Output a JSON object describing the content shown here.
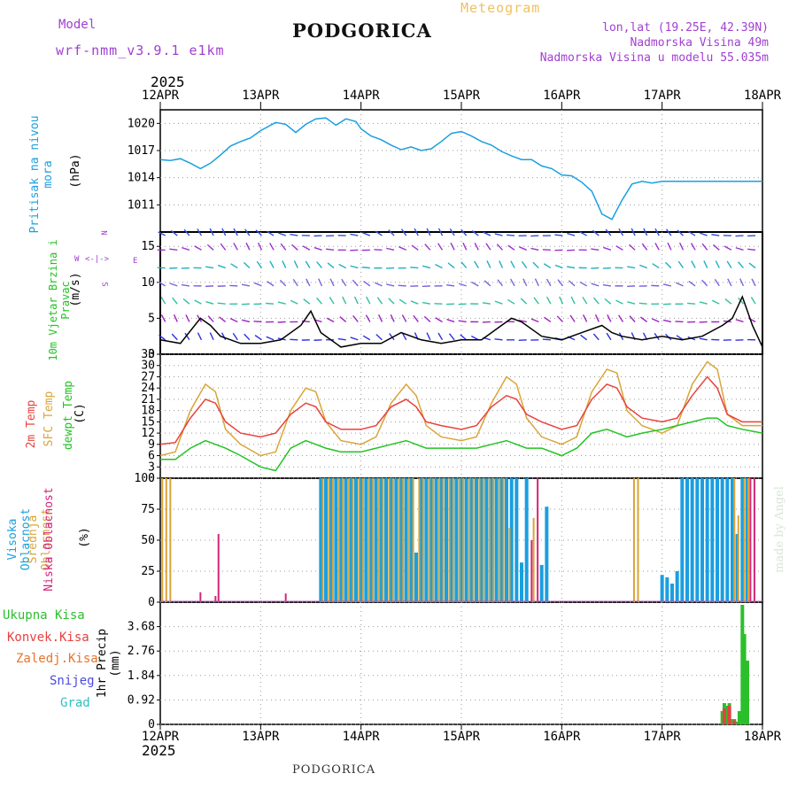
{
  "header": {
    "model_label": "Model",
    "model_name": "wrf-nmm_v3.9.1 e1km",
    "title": "PODGORICA",
    "meteogram_label": "Meteogram",
    "lonlat": "lon,lat (19.25E, 42.39N)",
    "altitude": "Nadmorska Visina 49m",
    "model_altitude": "Nadmorska Visina u modelu 55.035m",
    "year": "2025",
    "footer_title": "PODGORICA",
    "watermark": "made by Angel"
  },
  "colors": {
    "pressure": "#1a9fe0",
    "temp2m": "#e8423c",
    "sfc_temp": "#d9a53a",
    "dewpt": "#22c322",
    "high_cloud": "#1a9fe0",
    "mid_cloud": "#d9a53a",
    "low_cloud": "#d4257a",
    "total_precip": "#2cbf2c",
    "conv_precip": "#e84040",
    "frz_precip": "#e8742c",
    "snow": "#4a4ae0",
    "hail": "#30c0c0",
    "label_purple": "#a040d0",
    "label_orange": "#f0c060"
  },
  "x_axis": {
    "dates": [
      "12APR",
      "13APR",
      "14APR",
      "15APR",
      "16APR",
      "17APR",
      "18APR"
    ]
  },
  "wind_legend": {
    "N": "N",
    "S": "S",
    "W": "W",
    "E": "E"
  },
  "chart_data": [
    {
      "type": "line",
      "ylabel_left": "Pritisak na nivou mora",
      "ylabel": "(hPa)",
      "yticks": [
        1011,
        1014,
        1017,
        1020
      ],
      "ylim": [
        1008,
        1021.5
      ],
      "series": [
        {
          "name": "Pritisak na nivou mora",
          "x": [
            0,
            0.1,
            0.2,
            0.3,
            0.4,
            0.5,
            0.6,
            0.7,
            0.8,
            0.9,
            1.0,
            1.15,
            1.25,
            1.35,
            1.45,
            1.55,
            1.65,
            1.75,
            1.85,
            1.95,
            2.0,
            2.1,
            2.2,
            2.3,
            2.4,
            2.5,
            2.6,
            2.7,
            2.8,
            2.9,
            3.0,
            3.1,
            3.2,
            3.3,
            3.4,
            3.5,
            3.6,
            3.7,
            3.8,
            3.9,
            4.0,
            4.1,
            4.2,
            4.3,
            4.4,
            4.5,
            4.6,
            4.7,
            4.8,
            4.9,
            5.0,
            5.1,
            5.2,
            5.3,
            5.4,
            5.5,
            5.6,
            5.7,
            5.8,
            5.9,
            6.0
          ],
          "values": [
            1016,
            1015.9,
            1016.1,
            1015.6,
            1015.0,
            1015.6,
            1016.5,
            1017.5,
            1018.0,
            1018.4,
            1019.2,
            1020.1,
            1019.9,
            1019.0,
            1019.9,
            1020.5,
            1020.6,
            1019.8,
            1020.5,
            1020.2,
            1019.4,
            1018.6,
            1018.2,
            1017.6,
            1017.1,
            1017.4,
            1017.0,
            1017.2,
            1018.0,
            1018.9,
            1019.1,
            1018.6,
            1018.0,
            1017.6,
            1016.9,
            1016.4,
            1016.0,
            1016.0,
            1015.3,
            1015.0,
            1014.3,
            1014.2,
            1013.5,
            1012.5,
            1010.0,
            1009.4,
            1011.5,
            1013.3,
            1013.6,
            1013.4,
            1013.6,
            1013.6,
            1013.6,
            1013.6,
            1013.6,
            1013.6,
            1013.6,
            1013.6,
            1013.6,
            1013.6,
            1013.6
          ]
        }
      ]
    },
    {
      "type": "line",
      "ylabel_left": "10m Vjetar Brzina i Pravac",
      "ylabel": "(m/s)",
      "yticks": [
        0,
        5,
        10,
        15
      ],
      "ylim": [
        0,
        17
      ],
      "series": [
        {
          "name": "10m Vjetar",
          "x": [
            0,
            0.2,
            0.4,
            0.5,
            0.6,
            0.8,
            1.0,
            1.2,
            1.4,
            1.5,
            1.6,
            1.8,
            2.0,
            2.2,
            2.4,
            2.6,
            2.8,
            3.0,
            3.2,
            3.4,
            3.5,
            3.6,
            3.8,
            4.0,
            4.2,
            4.4,
            4.5,
            4.6,
            4.8,
            5.0,
            5.2,
            5.4,
            5.6,
            5.7,
            5.8,
            5.9,
            6.0
          ],
          "values": [
            2,
            1.5,
            5,
            4,
            2.5,
            1.5,
            1.5,
            2,
            4,
            6,
            3,
            1,
            1.5,
            1.5,
            3,
            2,
            1.5,
            2,
            2,
            4,
            5,
            4.5,
            2.5,
            2,
            3,
            4,
            3,
            2.5,
            2,
            2.5,
            2,
            2.5,
            4,
            5,
            8,
            4,
            1
          ]
        }
      ]
    },
    {
      "type": "line",
      "ylabel_left": [
        "2m Temp",
        "SFC Temp",
        "dewpt Temp"
      ],
      "ylabel": "(C)",
      "yticks": [
        0,
        3,
        6,
        9,
        12,
        15,
        18,
        21,
        24,
        27,
        30,
        33
      ],
      "ylim": [
        0,
        33
      ],
      "series": [
        {
          "name": "2m Temp",
          "x": [
            0,
            0.15,
            0.3,
            0.45,
            0.55,
            0.65,
            0.8,
            1.0,
            1.15,
            1.3,
            1.45,
            1.55,
            1.65,
            1.8,
            2.0,
            2.15,
            2.3,
            2.45,
            2.55,
            2.65,
            2.8,
            3.0,
            3.15,
            3.3,
            3.45,
            3.55,
            3.65,
            3.8,
            4.0,
            4.15,
            4.3,
            4.45,
            4.55,
            4.65,
            4.8,
            5.0,
            5.15,
            5.3,
            5.45,
            5.55,
            5.65,
            5.8,
            6.0
          ],
          "values": [
            9,
            9.5,
            16,
            21,
            20,
            15,
            12,
            11,
            12,
            17,
            20,
            19,
            15,
            13,
            13,
            14,
            19,
            21,
            19,
            15,
            14,
            13,
            14,
            19,
            22,
            21,
            17,
            15,
            13,
            14,
            21,
            25,
            24,
            19,
            16,
            15,
            16,
            22,
            27,
            24,
            17,
            15,
            15
          ]
        },
        {
          "name": "SFC Temp",
          "x": [
            0,
            0.15,
            0.3,
            0.45,
            0.55,
            0.65,
            0.8,
            1.0,
            1.15,
            1.3,
            1.45,
            1.55,
            1.65,
            1.8,
            2.0,
            2.15,
            2.3,
            2.45,
            2.55,
            2.65,
            2.8,
            3.0,
            3.15,
            3.3,
            3.45,
            3.55,
            3.65,
            3.8,
            4.0,
            4.15,
            4.3,
            4.45,
            4.55,
            4.65,
            4.8,
            5.0,
            5.15,
            5.3,
            5.45,
            5.55,
            5.65,
            5.8,
            6.0
          ],
          "values": [
            6,
            7,
            18,
            25,
            23,
            13,
            9,
            6,
            7,
            18,
            24,
            23,
            15,
            10,
            9,
            11,
            20,
            25,
            22,
            14,
            11,
            10,
            11,
            20,
            27,
            25,
            16,
            11,
            9,
            11,
            23,
            29,
            28,
            18,
            14,
            12,
            14,
            25,
            31,
            29,
            17,
            14,
            14
          ]
        },
        {
          "name": "dewpt Temp",
          "x": [
            0,
            0.15,
            0.3,
            0.45,
            0.55,
            0.65,
            0.8,
            1.0,
            1.15,
            1.3,
            1.45,
            1.55,
            1.65,
            1.8,
            2.0,
            2.15,
            2.3,
            2.45,
            2.55,
            2.65,
            2.8,
            3.0,
            3.15,
            3.3,
            3.45,
            3.55,
            3.65,
            3.8,
            4.0,
            4.15,
            4.3,
            4.45,
            4.55,
            4.65,
            4.8,
            5.0,
            5.15,
            5.3,
            5.45,
            5.55,
            5.65,
            5.8,
            6.0
          ],
          "values": [
            5,
            5,
            8,
            10,
            9,
            8,
            6,
            3,
            2,
            8,
            10,
            9,
            8,
            7,
            7,
            8,
            9,
            10,
            9,
            8,
            8,
            8,
            8,
            9,
            10,
            9,
            8,
            8,
            6,
            8,
            12,
            13,
            12,
            11,
            12,
            13,
            14,
            15,
            16,
            16,
            14,
            13,
            12
          ]
        }
      ]
    },
    {
      "type": "bar",
      "ylabel_left": [
        "Visoka Oblacnost",
        "Srednja Oblacnost",
        "Niska Oblacnost"
      ],
      "ylabel": "(%)",
      "yticks": [
        0,
        25,
        50,
        75,
        100
      ],
      "ylim": [
        0,
        100
      ],
      "series": [
        {
          "name": "Visoka Oblacnost",
          "x": [
            1.6,
            1.65,
            1.7,
            1.75,
            1.8,
            1.85,
            1.9,
            1.95,
            2.0,
            2.05,
            2.1,
            2.15,
            2.2,
            2.25,
            2.3,
            2.35,
            2.4,
            2.45,
            2.5,
            2.55,
            2.6,
            2.65,
            2.7,
            2.75,
            2.8,
            2.85,
            2.9,
            2.95,
            3.0,
            3.05,
            3.1,
            3.15,
            3.2,
            3.25,
            3.3,
            3.35,
            3.4,
            3.45,
            3.5,
            3.55,
            3.6,
            3.65,
            3.8,
            3.85,
            5.0,
            5.05,
            5.1,
            5.15,
            5.2,
            5.25,
            5.3,
            5.35,
            5.4,
            5.45,
            5.5,
            5.55,
            5.6,
            5.65,
            5.7,
            5.75,
            5.8,
            5.85
          ],
          "values": [
            100,
            100,
            100,
            100,
            100,
            100,
            100,
            100,
            100,
            100,
            100,
            100,
            100,
            100,
            100,
            100,
            100,
            100,
            100,
            40,
            100,
            100,
            100,
            100,
            100,
            100,
            100,
            100,
            100,
            100,
            100,
            100,
            100,
            100,
            100,
            100,
            100,
            100,
            100,
            100,
            32,
            100,
            30,
            77,
            22,
            20,
            15,
            25,
            100,
            100,
            100,
            100,
            100,
            100,
            100,
            100,
            100,
            100,
            100,
            55,
            100,
            100
          ]
        },
        {
          "name": "Srednja Oblacnost",
          "x": [
            0.02,
            0.06,
            0.1,
            1.62,
            1.68,
            1.72,
            1.78,
            1.82,
            1.88,
            1.92,
            1.98,
            2.02,
            2.08,
            2.12,
            2.18,
            2.22,
            2.28,
            2.32,
            2.38,
            2.42,
            2.48,
            2.52,
            2.58,
            2.62,
            2.68,
            2.72,
            2.78,
            2.82,
            2.88,
            2.92,
            2.98,
            3.02,
            3.08,
            3.12,
            3.18,
            3.22,
            3.28,
            3.32,
            3.38,
            3.42,
            3.48,
            3.72,
            4.72,
            4.76,
            5.72,
            5.76,
            5.82,
            5.86
          ],
          "values": [
            100,
            100,
            100,
            100,
            100,
            100,
            100,
            100,
            100,
            100,
            100,
            100,
            100,
            100,
            100,
            100,
            100,
            100,
            100,
            100,
            100,
            100,
            100,
            100,
            100,
            100,
            100,
            100,
            100,
            100,
            100,
            100,
            100,
            100,
            100,
            100,
            100,
            100,
            100,
            100,
            60,
            68,
            100,
            100,
            100,
            70,
            100,
            100
          ]
        },
        {
          "name": "Niska Oblacnost",
          "x": [
            0.4,
            0.55,
            0.58,
            1.25,
            3.7,
            3.76,
            5.88,
            5.92
          ],
          "values": [
            8,
            5,
            55,
            7,
            50,
            100,
            100,
            100
          ]
        }
      ]
    },
    {
      "type": "bar",
      "ylabel_left": [
        "Ukupna Kisa",
        "Konvek.Kisa",
        "Zaledj.Kisa",
        "Snijeg",
        "Grad"
      ],
      "ylabel": "1hr Precip (mm)",
      "yticks": [
        "0",
        "0.92",
        "1.84",
        "2.76",
        "3.68"
      ],
      "ylim": [
        0,
        4.6
      ],
      "series": [
        {
          "name": "Ukupna Kisa",
          "x": [
            5.6,
            5.62,
            5.65,
            5.67,
            5.7,
            5.72,
            5.75,
            5.77,
            5.8,
            5.82,
            5.85
          ],
          "values": [
            0.5,
            0.8,
            0.7,
            0.8,
            0.2,
            0.2,
            0.1,
            0.5,
            4.5,
            3.4,
            2.4
          ]
        },
        {
          "name": "Konvek.Kisa",
          "x": [
            5.62,
            5.67,
            5.72
          ],
          "values": [
            0.6,
            0.7,
            0.15
          ]
        }
      ]
    }
  ]
}
